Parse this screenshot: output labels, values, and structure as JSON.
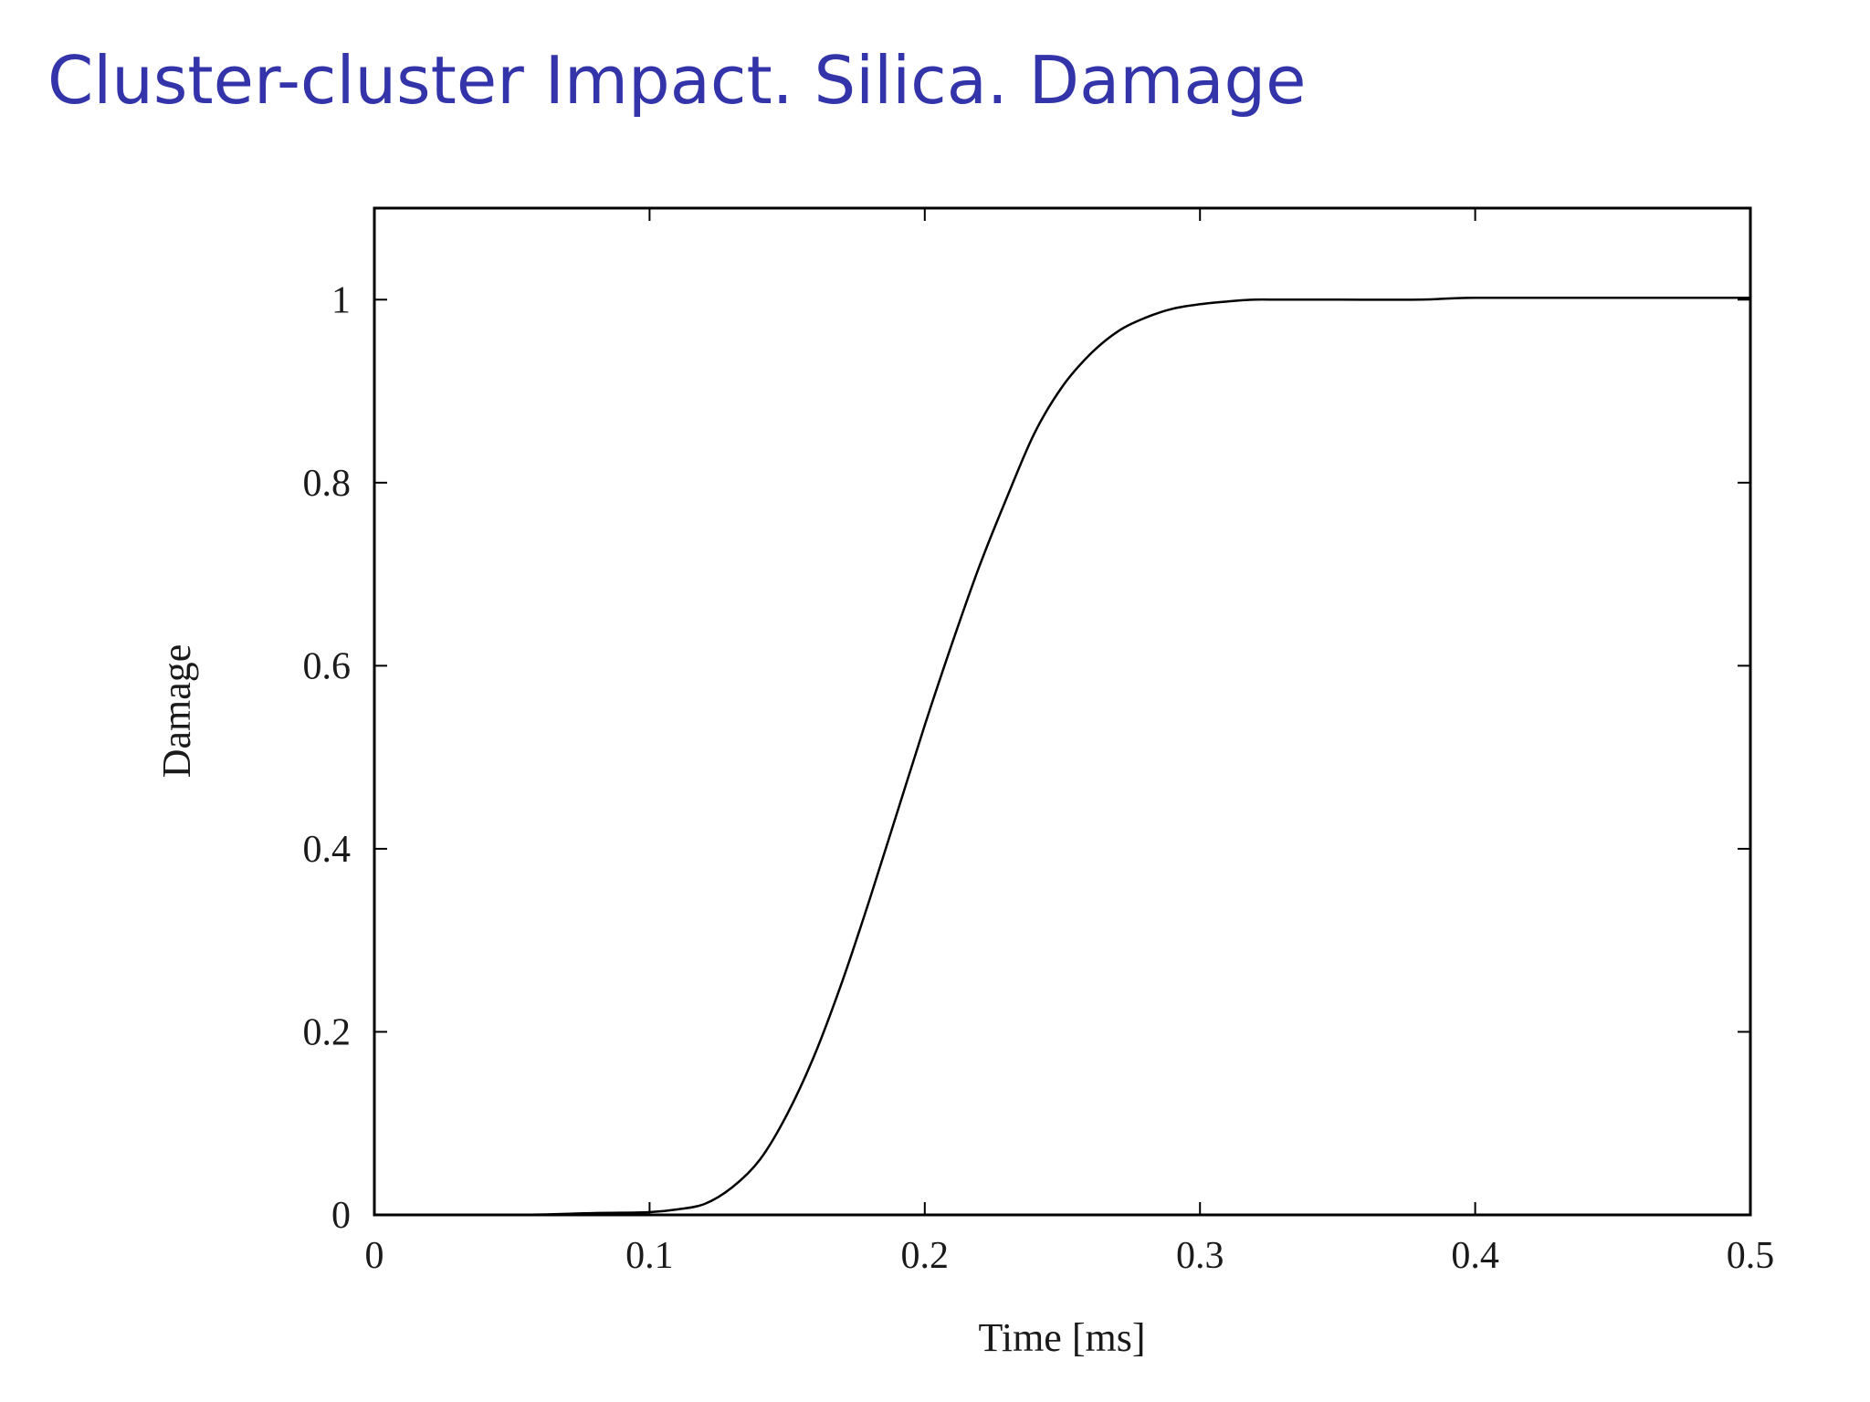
{
  "slide": {
    "title": "Cluster-cluster Impact. Silica. Damage",
    "title_color": "#3333aa"
  },
  "chart_data": {
    "type": "line",
    "title": "",
    "xlabel": "Time [ms]",
    "ylabel": "Damage",
    "xlim": [
      0,
      0.5
    ],
    "ylim": [
      0,
      1.1
    ],
    "x_ticks": [
      "0",
      "0.1",
      "0.2",
      "0.3",
      "0.4",
      "0.5"
    ],
    "y_ticks": [
      "0",
      "0.2",
      "0.4",
      "0.6",
      "0.8",
      "1"
    ],
    "grid": false,
    "legend": "none",
    "line_color": "#000000",
    "series": [
      {
        "x": [
          0,
          0.05,
          0.08,
          0.1,
          0.11,
          0.12,
          0.13,
          0.14,
          0.15,
          0.16,
          0.17,
          0.18,
          0.19,
          0.2,
          0.21,
          0.22,
          0.23,
          0.24,
          0.25,
          0.26,
          0.27,
          0.28,
          0.29,
          0.3,
          0.31,
          0.32,
          0.33,
          0.35,
          0.38,
          0.4,
          0.45,
          0.5
        ],
        "y": [
          0,
          0,
          0.002,
          0.003,
          0.006,
          0.012,
          0.03,
          0.06,
          0.11,
          0.175,
          0.255,
          0.345,
          0.44,
          0.535,
          0.625,
          0.71,
          0.785,
          0.855,
          0.905,
          0.94,
          0.965,
          0.98,
          0.99,
          0.995,
          0.998,
          1.0,
          1.0,
          1.0,
          1.0,
          1.002,
          1.002,
          1.002
        ]
      }
    ]
  }
}
